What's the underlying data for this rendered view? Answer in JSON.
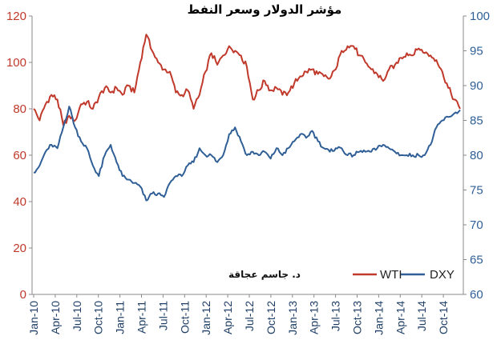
{
  "chart_data": {
    "type": "line",
    "title": "مؤشر الدولار وسعر النفط",
    "author": "د. جاسم عجاقة",
    "x_labels": [
      "Jan-10",
      "Apr-10",
      "Jul-10",
      "Oct-10",
      "Jan-11",
      "Apr-11",
      "Jul-11",
      "Oct-11",
      "Jan-12",
      "Apr-12",
      "Jul-12",
      "Oct-12",
      "Jan-13",
      "Apr-13",
      "Jul-13",
      "Oct-13",
      "Jan-14",
      "Apr-14",
      "Jul-14",
      "Oct-14"
    ],
    "y_left": {
      "min": 0,
      "max": 120,
      "ticks": [
        0,
        20,
        40,
        60,
        80,
        100,
        120
      ],
      "color": "#c0392b"
    },
    "y_right": {
      "min": 60,
      "max": 100,
      "ticks": [
        60,
        65,
        70,
        75,
        80,
        85,
        90,
        95,
        100
      ],
      "color": "#2f5f96"
    },
    "legend": {
      "position": "bottom-right"
    },
    "series": [
      {
        "name": "WTI",
        "axis": "left",
        "color": "#c0392b",
        "values": [
          80,
          75,
          82,
          86,
          84,
          73,
          77,
          75,
          82,
          83,
          80,
          85,
          89,
          87,
          89,
          86,
          90,
          87,
          100,
          112,
          105,
          100,
          97,
          96,
          87,
          86,
          88,
          80,
          86,
          96,
          104,
          99,
          103,
          107,
          105,
          103,
          98,
          84,
          88,
          92,
          88,
          89,
          86,
          87,
          91,
          94,
          96,
          97,
          95,
          94,
          93,
          97,
          105,
          107,
          107,
          103,
          100,
          97,
          95,
          92,
          97,
          99,
          102,
          104,
          103,
          106,
          104,
          103,
          101,
          96,
          89,
          84,
          80
        ]
      },
      {
        "name": "DXY",
        "axis": "right",
        "color": "#2f5f96",
        "values": [
          77.5,
          78.5,
          80.5,
          81.5,
          81,
          84,
          87,
          84,
          82,
          81,
          78.5,
          77,
          80,
          81.5,
          79,
          77,
          76.5,
          76,
          75.5,
          73.5,
          74.5,
          74.5,
          74,
          76,
          77,
          77,
          78.5,
          79,
          81,
          80,
          80,
          79,
          80,
          83,
          84,
          82,
          80,
          80.5,
          80,
          80.5,
          79.5,
          81,
          80,
          81,
          82,
          83,
          82.5,
          83.5,
          82,
          81,
          80.5,
          81,
          81,
          80,
          80,
          80.5,
          80.5,
          80.5,
          81,
          81.5,
          81,
          80.5,
          80,
          80,
          80,
          80,
          80,
          81.5,
          84,
          85,
          85.5,
          86,
          86.5
        ]
      }
    ]
  }
}
